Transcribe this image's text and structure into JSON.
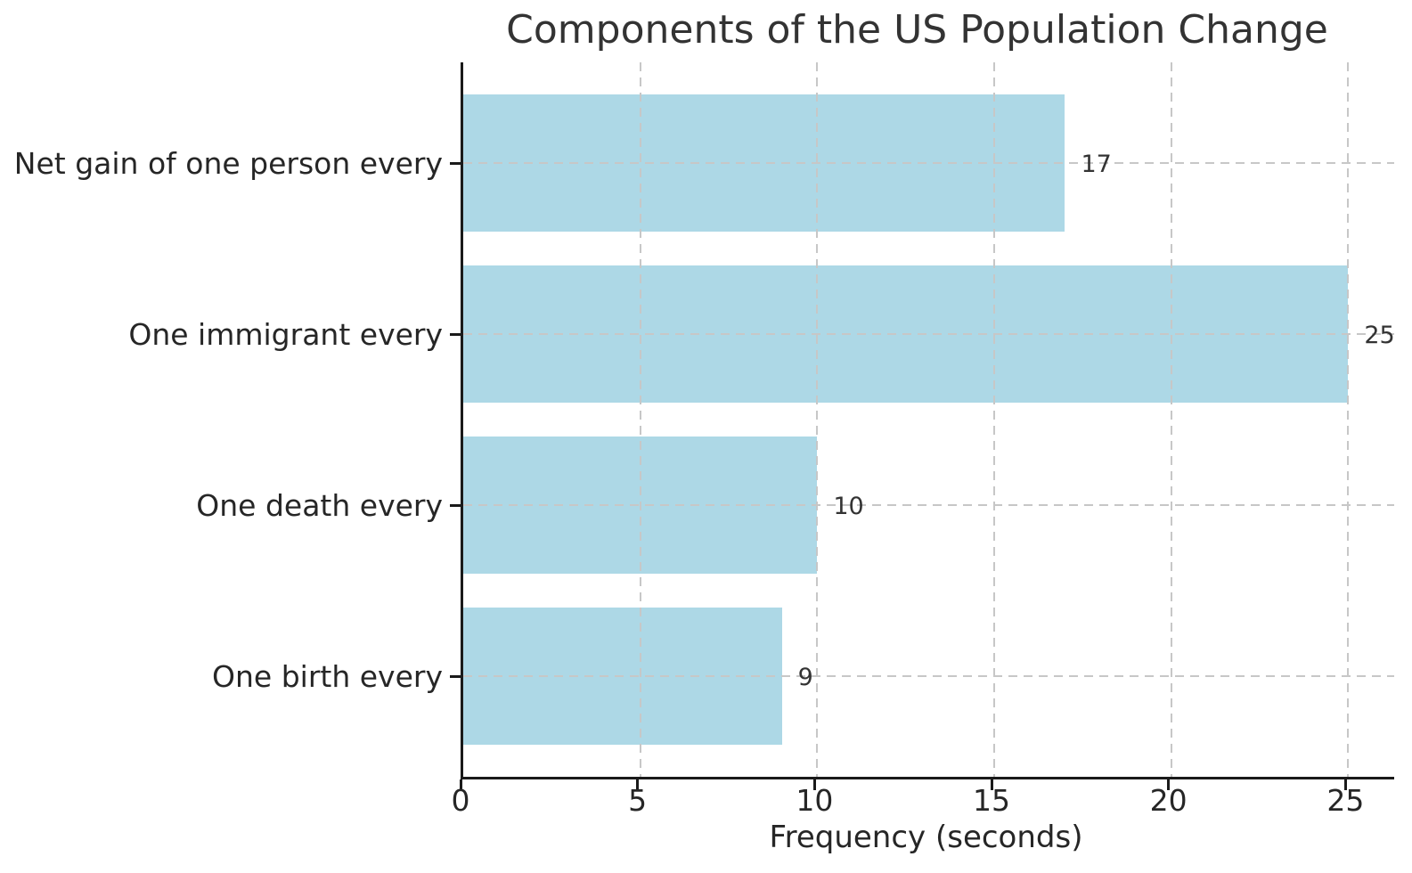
{
  "chart_data": {
    "type": "bar",
    "orientation": "horizontal",
    "title": "Components of the US Population Change",
    "xlabel": "Frequency (seconds)",
    "ylabel": "",
    "categories": [
      "Net gain of one person every",
      "One immigrant every",
      "One death every",
      "One birth every"
    ],
    "values": [
      17,
      25,
      10,
      9
    ],
    "value_labels": [
      "17",
      "25",
      "10",
      "9"
    ],
    "x_ticks": [
      0,
      5,
      10,
      15,
      20,
      25
    ],
    "x_tick_labels": [
      "0",
      "5",
      "10",
      "15",
      "20",
      "25"
    ],
    "xlim": [
      0,
      26.3
    ],
    "grid": "dashed vertical and horizontal gridlines, drawn over bars",
    "legend_position": "none",
    "bar_color": "#ADD8E6",
    "text_color": "#333333",
    "grid_color": "#c7c7c7",
    "axis_color": "#1a1a1a"
  }
}
